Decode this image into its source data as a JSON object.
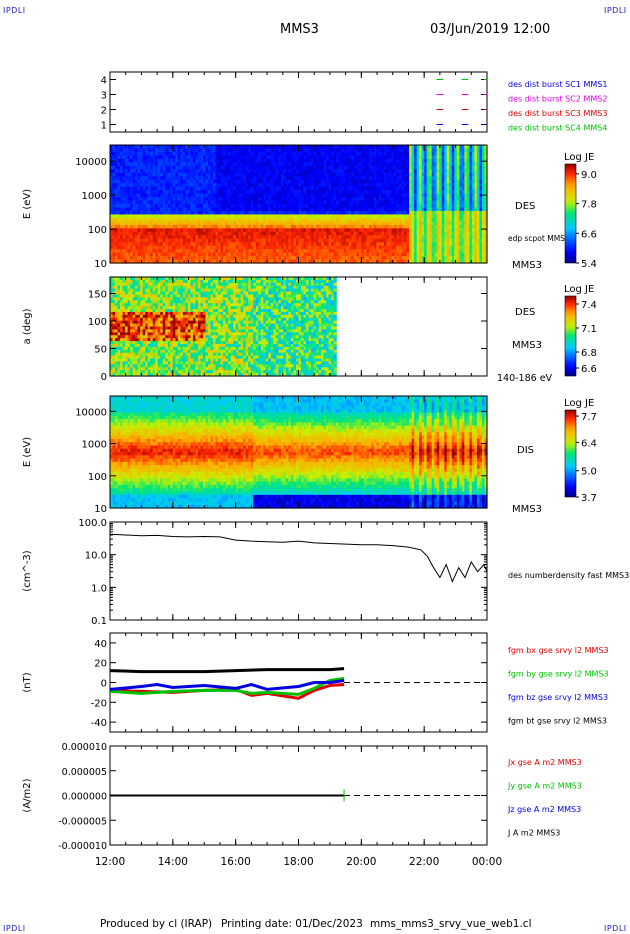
{
  "corner_label": "IPDLI",
  "header": {
    "spacecraft": "MMS3",
    "datetime": "03/Jun/2019 12:00"
  },
  "footer": {
    "credit": "Produced by cl (IRAP)",
    "printing": "Printing date: 01/Dec/2023",
    "file": "mms_mms3_srvy_vue_web1.cl"
  },
  "colors": {
    "bx": "#e00000",
    "by": "#00c000",
    "bz": "#0000e0",
    "bt": "#000000",
    "sc1": "#00c000",
    "sc2": "#e000e0",
    "sc3": "#e00000",
    "sc4": "#0000e0"
  },
  "chart_data": [
    {
      "type": "line",
      "panel": "burst-flags",
      "ylim": [
        0.5,
        4.5
      ],
      "ytick_labels": [
        "4",
        "3",
        "2",
        "1"
      ],
      "series": [
        {
          "name": "des dist burst SC1 MMS1",
          "level": 4,
          "color": "#00c000"
        },
        {
          "name": "des dist burst SC2 MMS2",
          "level": 3,
          "color": "#e000e0"
        },
        {
          "name": "des dist burst SC3 MMS3",
          "level": 2,
          "color": "#e00000"
        },
        {
          "name": "des dist burst SC4 MMS4",
          "level": 1,
          "color": "#0000e0"
        }
      ],
      "legend_colors": [
        "#0000e0",
        "#e000e0",
        "#e00000",
        "#00c000"
      ],
      "burst_intervals_h": [
        [
          22.3,
          22.7
        ],
        [
          23.1,
          23.5
        ],
        [
          23.9,
          24.0
        ]
      ]
    },
    {
      "type": "heatmap",
      "panel": "des-energy",
      "ylabel": "E (eV)",
      "ytick_labels": [
        "10000",
        "1000",
        "100",
        "10"
      ],
      "yrange": [
        10,
        30000
      ],
      "log_y": true,
      "right_labels": [
        "DES",
        "edp scpot MMS3",
        "MMS3"
      ],
      "colorbar": {
        "title": "Log JE",
        "ticks": [
          "9.0",
          "7.8",
          "6.6",
          "5.4"
        ],
        "range": [
          5.4,
          9.4
        ]
      }
    },
    {
      "type": "heatmap",
      "panel": "des-pitch-angle",
      "ylabel": "a (deg)",
      "ytick_labels": [
        "150",
        "100",
        "50",
        "0"
      ],
      "yrange": [
        0,
        180
      ],
      "data_end_h": 19.2,
      "right_labels": [
        "DES",
        "MMS3",
        "140-186 eV"
      ],
      "colorbar": {
        "title": "Log JE",
        "ticks": [
          "7.4",
          "7.1",
          "6.8",
          "6.6"
        ],
        "range": [
          6.5,
          7.5
        ]
      }
    },
    {
      "type": "heatmap",
      "panel": "dis-energy",
      "ylabel": "E (eV)",
      "ytick_labels": [
        "10000",
        "1000",
        "100",
        "10"
      ],
      "yrange": [
        10,
        30000
      ],
      "log_y": true,
      "right_labels": [
        "DIS",
        "MMS3"
      ],
      "colorbar": {
        "title": "Log JE",
        "ticks": [
          "7.7",
          "6.4",
          "5.0",
          "3.7"
        ],
        "range": [
          3.7,
          8.0
        ]
      }
    },
    {
      "type": "line",
      "panel": "density",
      "ylabel": "(cm^-3)",
      "ytick_labels": [
        "100.0",
        "10.0",
        "1.0",
        "0.1"
      ],
      "ylim": [
        0.1,
        100
      ],
      "log_y": true,
      "series": [
        {
          "name": "des numberdensity fast MMS3",
          "color": "#000000",
          "x": [
            12.0,
            12.5,
            13.0,
            13.5,
            14.0,
            14.5,
            15.0,
            15.5,
            16.0,
            16.5,
            17.0,
            17.5,
            18.0,
            18.5,
            19.0,
            19.5,
            20.0,
            20.5,
            21.0,
            21.5,
            21.9,
            22.1,
            22.3,
            22.5,
            22.7,
            22.9,
            23.1,
            23.3,
            23.5,
            23.7,
            23.9,
            24.0
          ],
          "y": [
            42,
            40,
            38,
            39,
            36,
            35,
            36,
            35,
            28,
            26,
            25,
            24,
            26,
            23,
            22,
            21,
            20,
            20,
            19,
            17,
            14,
            9,
            4,
            2,
            5,
            1.5,
            4,
            2,
            6,
            3,
            5,
            3
          ]
        }
      ]
    },
    {
      "type": "line",
      "panel": "magnetic-field",
      "ylabel": "(nT)",
      "ytick_labels": [
        "40",
        "20",
        "0",
        "-20",
        "-40"
      ],
      "ylim": [
        -50,
        50
      ],
      "data_end_h": 19.45,
      "series": [
        {
          "name": "fgm bx gse srvy l2 MMS3",
          "color": "#e00000",
          "x": [
            12.0,
            13.0,
            14.0,
            15.0,
            16.0,
            16.5,
            17.0,
            18.0,
            18.5,
            19.0,
            19.45
          ],
          "y": [
            -8,
            -9,
            -10,
            -8,
            -7,
            -13,
            -11,
            -16,
            -8,
            -3,
            -2
          ]
        },
        {
          "name": "fgm by gse srvy l2 MMS3",
          "color": "#00c000",
          "x": [
            12.0,
            13.0,
            14.0,
            15.0,
            16.0,
            16.5,
            17.0,
            18.0,
            18.5,
            19.0,
            19.45
          ],
          "y": [
            -9,
            -11,
            -9,
            -8,
            -8,
            -11,
            -10,
            -12,
            -6,
            2,
            4
          ]
        },
        {
          "name": "fgm bz gse srvy l2 MMS3",
          "color": "#0000e0",
          "x": [
            12.0,
            13.0,
            13.5,
            14.0,
            15.0,
            16.0,
            16.5,
            17.0,
            18.0,
            18.5,
            19.0,
            19.45
          ],
          "y": [
            -7,
            -4,
            -2,
            -5,
            -3,
            -6,
            -2,
            -7,
            -4,
            0,
            0,
            2
          ]
        },
        {
          "name": "fgm bt gse srvy l2 MMS3",
          "color": "#000000",
          "x": [
            12.0,
            13.0,
            14.0,
            15.0,
            16.0,
            17.0,
            18.0,
            19.0,
            19.45
          ],
          "y": [
            12,
            11,
            11,
            11,
            12,
            13,
            13,
            13,
            14
          ]
        }
      ]
    },
    {
      "type": "line",
      "panel": "current-density",
      "ylabel": "(A/m2)",
      "ytick_labels": [
        "0.000010",
        "0.000005",
        "0.000000",
        "-0.000005",
        "-0.000010"
      ],
      "ylim": [
        -1e-05,
        1e-05
      ],
      "data_end_h": 19.45,
      "series": [
        {
          "name": "Jx gse A m2 MMS3",
          "color": "#e00000"
        },
        {
          "name": "Jy gse A m2 MMS3",
          "color": "#00c000"
        },
        {
          "name": "Jz gse A m2 MMS3",
          "color": "#0000e0"
        },
        {
          "name": "J A m2 MMS3",
          "color": "#000000"
        }
      ]
    }
  ],
  "time_axis": {
    "ticks": [
      "12:00",
      "14:00",
      "16:00",
      "18:00",
      "20:00",
      "22:00",
      "00:00"
    ],
    "range_h": [
      12,
      24
    ]
  }
}
